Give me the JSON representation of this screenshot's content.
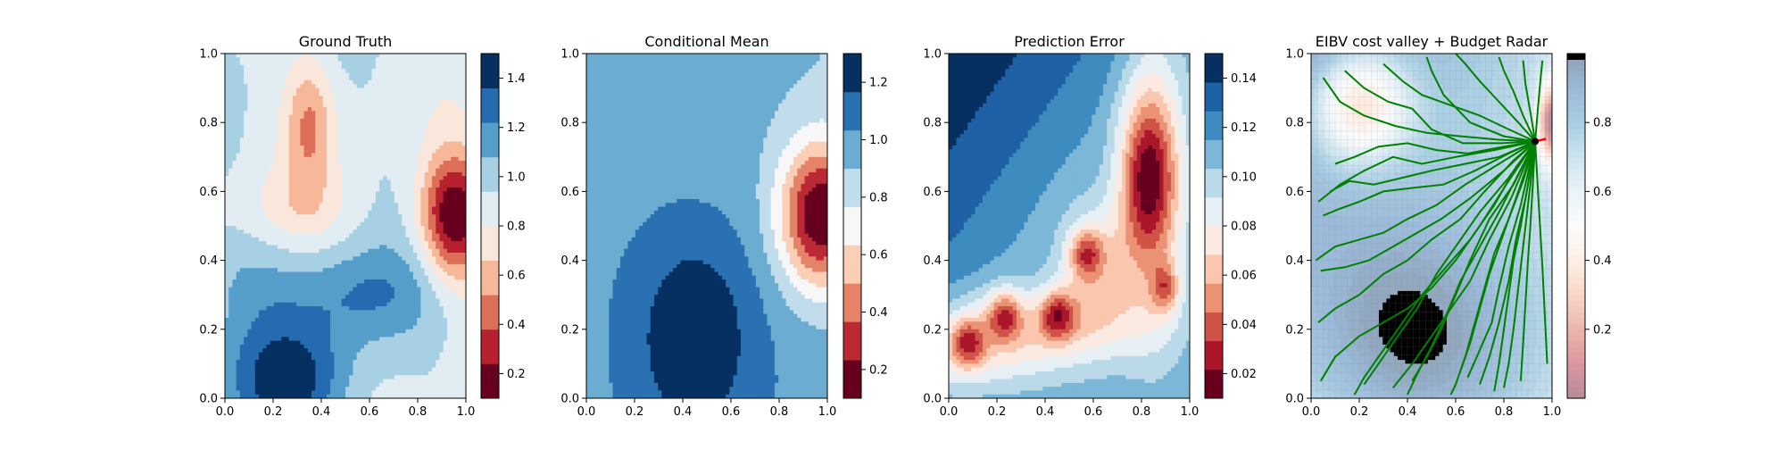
{
  "figure": {
    "background": "#ffffff"
  },
  "colors": {
    "rdbu": [
      "#67001f",
      "#b2182b",
      "#d6604d",
      "#f4a582",
      "#fddbc7",
      "#f7f7f7",
      "#d1e5f0",
      "#92c5de",
      "#4393c3",
      "#2166ac",
      "#053061"
    ],
    "path_green": "#008000",
    "marker_red": "#ff0000",
    "marker_black": "#000000"
  },
  "chart_data": [
    {
      "type": "heatmap",
      "title": "Ground Truth",
      "xlim": [
        0.0,
        1.0
      ],
      "ylim": [
        0.0,
        1.0
      ],
      "x_ticks": [
        "0.0",
        "0.2",
        "0.4",
        "0.6",
        "0.8",
        "1.0"
      ],
      "y_ticks": [
        "0.0",
        "0.2",
        "0.4",
        "0.6",
        "0.8",
        "1.0"
      ],
      "colorbar": {
        "colormap": "RdBu",
        "levels": [
          0.1,
          0.25,
          0.4,
          0.55,
          0.7,
          0.85,
          0.95,
          1.05,
          1.15,
          1.3,
          1.5
        ],
        "ticks": [
          "0.2",
          "0.4",
          "0.6",
          "0.8",
          "1.0",
          "1.2",
          "1.4"
        ]
      },
      "field": "ground_truth",
      "grid": false
    },
    {
      "type": "heatmap",
      "title": "Conditional Mean",
      "xlim": [
        0.0,
        1.0
      ],
      "ylim": [
        0.0,
        1.0
      ],
      "x_ticks": [
        "0.0",
        "0.2",
        "0.4",
        "0.6",
        "0.8",
        "1.0"
      ],
      "y_ticks": [
        "0.0",
        "0.2",
        "0.4",
        "0.6",
        "0.8",
        "1.0"
      ],
      "colorbar": {
        "colormap": "RdBu",
        "levels": [
          0.1,
          0.25,
          0.4,
          0.55,
          0.7,
          0.85,
          0.95,
          1.05,
          1.15,
          1.3
        ],
        "ticks": [
          "0.2",
          "0.4",
          "0.6",
          "0.8",
          "1.0",
          "1.2"
        ]
      },
      "field": "conditional_mean",
      "grid": false
    },
    {
      "type": "heatmap",
      "title": "Prediction Error",
      "xlim": [
        0.0,
        1.0
      ],
      "ylim": [
        0.0,
        1.0
      ],
      "x_ticks": [
        "0.0",
        "0.2",
        "0.4",
        "0.6",
        "0.8",
        "1.0"
      ],
      "y_ticks": [
        "0.0",
        "0.2",
        "0.4",
        "0.6",
        "0.8",
        "1.0"
      ],
      "colorbar": {
        "colormap": "RdBu",
        "levels": [
          0.01,
          0.025,
          0.035,
          0.045,
          0.055,
          0.065,
          0.075,
          0.085,
          0.095,
          0.105,
          0.115,
          0.13,
          0.15
        ],
        "ticks": [
          "0.02",
          "0.04",
          "0.06",
          "0.08",
          "0.10",
          "0.12",
          "0.14"
        ]
      },
      "field": "prediction_error",
      "grid": false
    },
    {
      "type": "heatmap",
      "title": "EIBV cost valley + Budget Radar",
      "xlim": [
        0.0,
        1.0
      ],
      "ylim": [
        0.0,
        1.0
      ],
      "x_ticks": [
        "0.0",
        "0.2",
        "0.4",
        "0.6",
        "0.8",
        "1.0"
      ],
      "y_ticks": [
        "0.0",
        "0.2",
        "0.4",
        "0.6",
        "0.8",
        "1.0"
      ],
      "colorbar": {
        "colormap": "RdBu (light)",
        "levels": [
          0.0,
          1.0
        ],
        "ticks": [
          "0.2",
          "0.4",
          "0.6",
          "0.8"
        ]
      },
      "field": "cost_valley",
      "grid": true,
      "current_location": [
        0.93,
        0.745
      ],
      "radar": {
        "color": "#008000",
        "paths": [
          [
            [
              0.93,
              0.745
            ],
            [
              0.78,
              0.75
            ],
            [
              0.62,
              0.76
            ],
            [
              0.48,
              0.77
            ],
            [
              0.35,
              0.79
            ],
            [
              0.22,
              0.82
            ],
            [
              0.12,
              0.86
            ],
            [
              0.05,
              0.93
            ]
          ],
          [
            [
              0.93,
              0.745
            ],
            [
              0.8,
              0.73
            ],
            [
              0.65,
              0.71
            ],
            [
              0.52,
              0.72
            ],
            [
              0.4,
              0.74
            ],
            [
              0.28,
              0.73
            ],
            [
              0.18,
              0.7
            ],
            [
              0.1,
              0.68
            ]
          ],
          [
            [
              0.93,
              0.745
            ],
            [
              0.82,
              0.71
            ],
            [
              0.68,
              0.66
            ],
            [
              0.55,
              0.62
            ],
            [
              0.42,
              0.61
            ],
            [
              0.3,
              0.6
            ],
            [
              0.2,
              0.57
            ],
            [
              0.12,
              0.55
            ],
            [
              0.05,
              0.53
            ]
          ],
          [
            [
              0.93,
              0.745
            ],
            [
              0.84,
              0.69
            ],
            [
              0.72,
              0.6
            ],
            [
              0.62,
              0.52
            ],
            [
              0.5,
              0.46
            ],
            [
              0.4,
              0.4
            ],
            [
              0.3,
              0.36
            ],
            [
              0.2,
              0.3
            ],
            [
              0.1,
              0.26
            ],
            [
              0.03,
              0.22
            ]
          ],
          [
            [
              0.93,
              0.745
            ],
            [
              0.85,
              0.67
            ],
            [
              0.76,
              0.56
            ],
            [
              0.66,
              0.46
            ],
            [
              0.56,
              0.38
            ],
            [
              0.46,
              0.3
            ],
            [
              0.38,
              0.22
            ],
            [
              0.3,
              0.14
            ],
            [
              0.22,
              0.06
            ],
            [
              0.18,
              0.01
            ]
          ],
          [
            [
              0.93,
              0.745
            ],
            [
              0.86,
              0.65
            ],
            [
              0.78,
              0.54
            ],
            [
              0.7,
              0.44
            ],
            [
              0.62,
              0.34
            ],
            [
              0.56,
              0.24
            ],
            [
              0.5,
              0.15
            ],
            [
              0.44,
              0.07
            ],
            [
              0.4,
              0.01
            ]
          ],
          [
            [
              0.93,
              0.745
            ],
            [
              0.88,
              0.63
            ],
            [
              0.82,
              0.52
            ],
            [
              0.76,
              0.42
            ],
            [
              0.72,
              0.32
            ],
            [
              0.68,
              0.22
            ],
            [
              0.64,
              0.12
            ],
            [
              0.6,
              0.04
            ],
            [
              0.58,
              0.01
            ]
          ],
          [
            [
              0.93,
              0.745
            ],
            [
              0.9,
              0.62
            ],
            [
              0.87,
              0.5
            ],
            [
              0.84,
              0.4
            ],
            [
              0.82,
              0.3
            ],
            [
              0.8,
              0.2
            ],
            [
              0.78,
              0.1
            ],
            [
              0.76,
              0.02
            ]
          ],
          [
            [
              0.93,
              0.745
            ],
            [
              0.92,
              0.62
            ],
            [
              0.91,
              0.5
            ],
            [
              0.9,
              0.4
            ],
            [
              0.89,
              0.28
            ],
            [
              0.88,
              0.16
            ],
            [
              0.87,
              0.05
            ]
          ],
          [
            [
              0.93,
              0.745
            ],
            [
              0.94,
              0.62
            ],
            [
              0.95,
              0.5
            ],
            [
              0.96,
              0.38
            ],
            [
              0.97,
              0.24
            ],
            [
              0.98,
              0.1
            ]
          ],
          [
            [
              0.93,
              0.745
            ],
            [
              0.86,
              0.8
            ],
            [
              0.78,
              0.86
            ],
            [
              0.7,
              0.92
            ],
            [
              0.64,
              0.97
            ],
            [
              0.6,
              1.0
            ]
          ],
          [
            [
              0.93,
              0.745
            ],
            [
              0.88,
              0.82
            ],
            [
              0.84,
              0.89
            ],
            [
              0.8,
              0.95
            ],
            [
              0.78,
              0.99
            ]
          ],
          [
            [
              0.93,
              0.745
            ],
            [
              0.91,
              0.83
            ],
            [
              0.89,
              0.91
            ],
            [
              0.88,
              0.98
            ]
          ],
          [
            [
              0.93,
              0.745
            ],
            [
              0.94,
              0.83
            ],
            [
              0.95,
              0.91
            ],
            [
              0.96,
              0.98
            ]
          ],
          [
            [
              0.93,
              0.745
            ],
            [
              0.82,
              0.78
            ],
            [
              0.7,
              0.82
            ],
            [
              0.58,
              0.85
            ],
            [
              0.46,
              0.88
            ],
            [
              0.38,
              0.92
            ],
            [
              0.3,
              0.97
            ]
          ],
          [
            [
              0.93,
              0.745
            ],
            [
              0.8,
              0.76
            ],
            [
              0.66,
              0.8
            ],
            [
              0.55,
              0.88
            ],
            [
              0.5,
              0.95
            ],
            [
              0.48,
              0.99
            ]
          ],
          [
            [
              0.93,
              0.745
            ],
            [
              0.78,
              0.7
            ],
            [
              0.64,
              0.68
            ],
            [
              0.5,
              0.66
            ],
            [
              0.38,
              0.64
            ],
            [
              0.26,
              0.62
            ],
            [
              0.16,
              0.63
            ],
            [
              0.08,
              0.6
            ]
          ],
          [
            [
              0.93,
              0.745
            ],
            [
              0.8,
              0.66
            ],
            [
              0.66,
              0.58
            ],
            [
              0.54,
              0.52
            ],
            [
              0.44,
              0.48
            ],
            [
              0.34,
              0.44
            ],
            [
              0.24,
              0.4
            ],
            [
              0.14,
              0.38
            ],
            [
              0.04,
              0.37
            ]
          ],
          [
            [
              0.93,
              0.745
            ],
            [
              0.82,
              0.64
            ],
            [
              0.7,
              0.54
            ],
            [
              0.6,
              0.44
            ],
            [
              0.52,
              0.36
            ],
            [
              0.44,
              0.26
            ],
            [
              0.36,
              0.18
            ],
            [
              0.28,
              0.1
            ],
            [
              0.22,
              0.04
            ]
          ],
          [
            [
              0.93,
              0.745
            ],
            [
              0.84,
              0.62
            ],
            [
              0.74,
              0.52
            ],
            [
              0.66,
              0.4
            ],
            [
              0.6,
              0.3
            ],
            [
              0.54,
              0.2
            ],
            [
              0.48,
              0.12
            ],
            [
              0.42,
              0.05
            ]
          ],
          [
            [
              0.93,
              0.745
            ],
            [
              0.86,
              0.6
            ],
            [
              0.8,
              0.48
            ],
            [
              0.74,
              0.36
            ],
            [
              0.7,
              0.26
            ],
            [
              0.66,
              0.16
            ],
            [
              0.62,
              0.08
            ]
          ],
          [
            [
              0.93,
              0.745
            ],
            [
              0.89,
              0.58
            ],
            [
              0.85,
              0.46
            ],
            [
              0.82,
              0.34
            ],
            [
              0.78,
              0.22
            ],
            [
              0.74,
              0.12
            ],
            [
              0.7,
              0.04
            ]
          ],
          [
            [
              0.93,
              0.745
            ],
            [
              0.76,
              0.72
            ],
            [
              0.6,
              0.7
            ],
            [
              0.46,
              0.68
            ],
            [
              0.34,
              0.7
            ],
            [
              0.22,
              0.66
            ],
            [
              0.12,
              0.62
            ],
            [
              0.03,
              0.57
            ]
          ],
          [
            [
              0.93,
              0.745
            ],
            [
              0.79,
              0.74
            ],
            [
              0.63,
              0.74
            ],
            [
              0.5,
              0.78
            ],
            [
              0.42,
              0.84
            ],
            [
              0.32,
              0.86
            ],
            [
              0.22,
              0.9
            ],
            [
              0.14,
              0.95
            ]
          ],
          [
            [
              0.93,
              0.745
            ],
            [
              0.78,
              0.68
            ],
            [
              0.64,
              0.62
            ],
            [
              0.52,
              0.56
            ],
            [
              0.4,
              0.52
            ],
            [
              0.3,
              0.48
            ],
            [
              0.2,
              0.46
            ],
            [
              0.1,
              0.44
            ],
            [
              0.02,
              0.4
            ]
          ],
          [
            [
              0.93,
              0.745
            ],
            [
              0.81,
              0.62
            ],
            [
              0.7,
              0.5
            ],
            [
              0.6,
              0.4
            ],
            [
              0.5,
              0.32
            ],
            [
              0.4,
              0.26
            ],
            [
              0.3,
              0.22
            ],
            [
              0.2,
              0.18
            ],
            [
              0.1,
              0.12
            ],
            [
              0.04,
              0.05
            ]
          ],
          [
            [
              0.93,
              0.745
            ],
            [
              0.83,
              0.58
            ],
            [
              0.74,
              0.46
            ],
            [
              0.66,
              0.34
            ],
            [
              0.58,
              0.26
            ],
            [
              0.5,
              0.18
            ],
            [
              0.42,
              0.1
            ],
            [
              0.34,
              0.03
            ]
          ],
          [
            [
              0.93,
              0.745
            ],
            [
              0.87,
              0.56
            ],
            [
              0.82,
              0.44
            ],
            [
              0.78,
              0.32
            ],
            [
              0.75,
              0.22
            ],
            [
              0.7,
              0.14
            ],
            [
              0.65,
              0.06
            ]
          ],
          [
            [
              0.93,
              0.745
            ],
            [
              0.9,
              0.56
            ],
            [
              0.88,
              0.44
            ],
            [
              0.86,
              0.32
            ],
            [
              0.84,
              0.2
            ],
            [
              0.82,
              0.1
            ],
            [
              0.8,
              0.03
            ]
          ]
        ]
      }
    }
  ]
}
